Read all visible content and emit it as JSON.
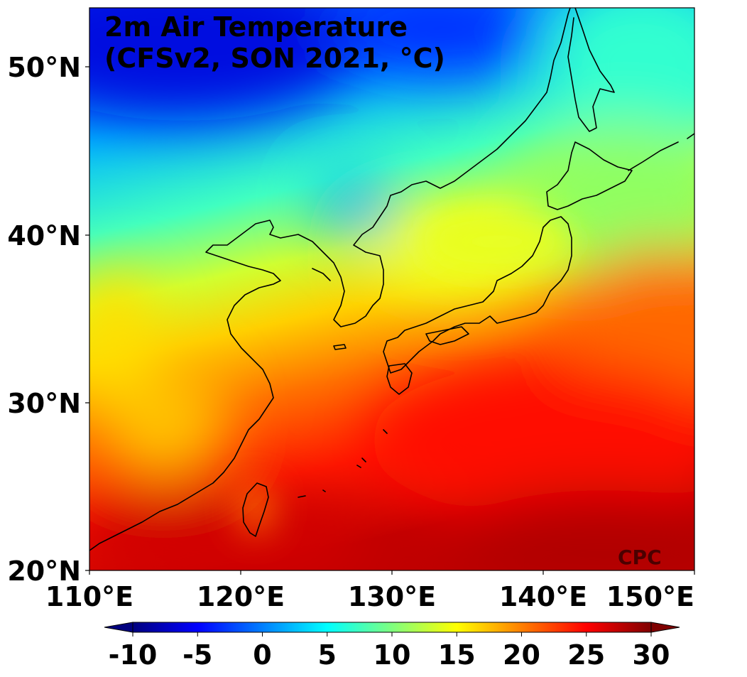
{
  "map": {
    "title_line1": "2m Air Temperature",
    "title_line2": "(CFSv2, SON 2021, °C)",
    "credit": "CPC",
    "lon_ticks": [
      "110°E",
      "120°E",
      "130°E",
      "140°E",
      "150°E"
    ],
    "lat_ticks": [
      "50°N",
      "40°N",
      "30°N",
      "20°N"
    ],
    "extent": {
      "lon_min": 110,
      "lon_max": 150,
      "lat_min": 20,
      "lat_max": 53.5
    },
    "variable": "2m air temperature",
    "units": "°C"
  },
  "colorbar": {
    "labels": [
      "-10",
      "-5",
      "0",
      "5",
      "10",
      "15",
      "20",
      "25",
      "30"
    ],
    "min": -10,
    "max": 30,
    "colormap": "jet",
    "stops": [
      "#00007f",
      "#0000ff",
      "#007fff",
      "#00ffff",
      "#7fff7f",
      "#ffff00",
      "#ff7f00",
      "#ff0000",
      "#7f0000"
    ]
  }
}
